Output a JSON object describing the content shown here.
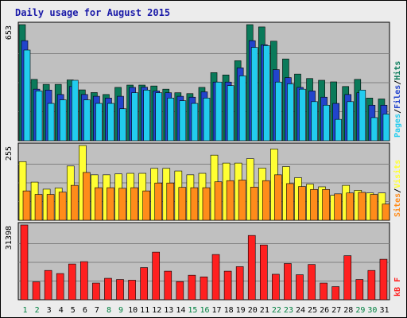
{
  "colors": {
    "background": "#ececec",
    "panel": "#c0c0c0",
    "grid": "#808080",
    "title": "#1a1aa8",
    "hits": "#0a7a5a",
    "files": "#2244cc",
    "pages": "#22ccee",
    "visits": "#ffff33",
    "sites": "#ff8c1a",
    "kbf": "#ff2020",
    "weekend_label": "#008040",
    "weekday_label": "#000000"
  },
  "chart_data": {
    "type": "bar",
    "title": "Daily usage for August 2015",
    "categories": [
      "1",
      "2",
      "3",
      "4",
      "5",
      "6",
      "7",
      "8",
      "9",
      "10",
      "11",
      "12",
      "13",
      "14",
      "15",
      "16",
      "17",
      "18",
      "19",
      "20",
      "21",
      "22",
      "23",
      "24",
      "25",
      "26",
      "27",
      "28",
      "29",
      "30",
      "31"
    ],
    "weekend_days": [
      "1",
      "2",
      "8",
      "9",
      "15",
      "16",
      "22",
      "23",
      "29",
      "30"
    ],
    "panels": [
      {
        "id": "pages-files-hits",
        "scale_label": "653",
        "ylim": [
          0,
          653
        ],
        "legend": [
          "Pages",
          "/",
          "Files",
          "/",
          "Hits"
        ],
        "series": [
          {
            "name": "Hits",
            "color_key": "hits",
            "values": [
              653,
              345,
              317,
              317,
              342,
              286,
              271,
              260,
              300,
              313,
              313,
              308,
              290,
              270,
              265,
              300,
              383,
              370,
              450,
              653,
              640,
              560,
              460,
              375,
              350,
              340,
              331,
              305,
              345,
              240,
              235
            ]
          },
          {
            "name": "Files",
            "color_key": "files",
            "values": [
              563,
              290,
              285,
              260,
              305,
              260,
              250,
              240,
              250,
              300,
              301,
              280,
              270,
              250,
              245,
              275,
              330,
              330,
              410,
              563,
              540,
              400,
              355,
              300,
              280,
              245,
              210,
              260,
              270,
              200,
              200
            ]
          },
          {
            "name": "Pages",
            "color_key": "pages",
            "values": [
              510,
              280,
              210,
              230,
              340,
              230,
              210,
              210,
              180,
              270,
              285,
              270,
              240,
              225,
              210,
              240,
              330,
              310,
              365,
              525,
              535,
              330,
              320,
              290,
              220,
              200,
              120,
              220,
              285,
              130,
              150
            ]
          }
        ]
      },
      {
        "id": "sites-visits",
        "scale_label": "255",
        "ylim": [
          0,
          255
        ],
        "legend": [
          "Sites",
          "/",
          "Visits"
        ],
        "series": [
          {
            "name": "Visits",
            "color_key": "visits",
            "values": [
              200,
              130,
              106,
              110,
              185,
              255,
              155,
              155,
              158,
              160,
              160,
              177,
              177,
              168,
              155,
              160,
              222,
              195,
              195,
              210,
              178,
              243,
              183,
              145,
              123,
              114,
              85,
              119,
              102,
              93,
              93
            ]
          },
          {
            "name": "Sites",
            "color_key": "sites",
            "values": [
              100,
              88,
              88,
              96,
              119,
              163,
              111,
              111,
              109,
              111,
              100,
              127,
              127,
              112,
              111,
              111,
              131,
              135,
              137,
              113,
              135,
              155,
              125,
              115,
              105,
              105,
              90,
              93,
              95,
              88,
              55
            ]
          }
        ]
      },
      {
        "id": "kbf",
        "scale_label": "31398",
        "ylim": [
          0,
          31398
        ],
        "legend": [
          "kB",
          "F"
        ],
        "series": [
          {
            "name": "kB F",
            "color_key": "kbf",
            "values": [
              31398,
              7500,
              12300,
              11000,
              15000,
              16000,
              7000,
              9000,
              8500,
              8200,
              13500,
              20000,
              12000,
              7600,
              10300,
              9600,
              19000,
              12000,
              13900,
              27000,
              23000,
              10700,
              15200,
              10500,
              14800,
              7000,
              5500,
              18500,
              8500,
              12300,
              17000
            ]
          }
        ]
      }
    ]
  }
}
